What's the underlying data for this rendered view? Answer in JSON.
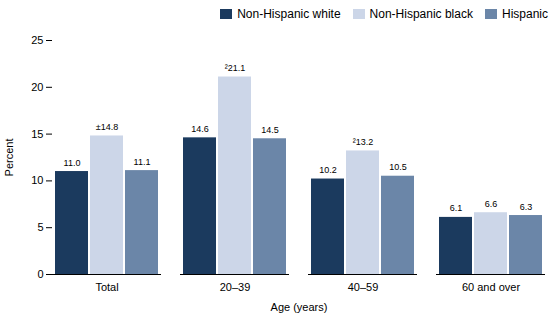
{
  "chart_data": {
    "type": "bar",
    "categories": [
      "Total",
      "20–39",
      "40–59",
      "60 and over"
    ],
    "series": [
      {
        "name": "Non-Hispanic white",
        "color": "#1b3a5e",
        "values": [
          11.0,
          14.6,
          10.2,
          6.1
        ],
        "value_labels": [
          "11.0",
          "14.6",
          "10.2",
          "6.1"
        ]
      },
      {
        "name": "Non-Hispanic black",
        "color": "#ccd6e8",
        "values": [
          14.8,
          21.1,
          13.2,
          6.6
        ],
        "value_labels": [
          "±14.8",
          "²21.1",
          "²13.2",
          "6.6"
        ]
      },
      {
        "name": "Hispanic",
        "color": "#6b86a8",
        "values": [
          11.1,
          14.5,
          10.5,
          6.3
        ],
        "value_labels": [
          "11.1",
          "14.5",
          "10.5",
          "6.3"
        ]
      }
    ],
    "xlabel": "Age (years)",
    "ylabel": "Percent",
    "ylim": [
      0,
      25
    ],
    "yticks": [
      0,
      5,
      10,
      15,
      20,
      25
    ],
    "grid": false,
    "legend": "top-right",
    "data_labels": true
  }
}
